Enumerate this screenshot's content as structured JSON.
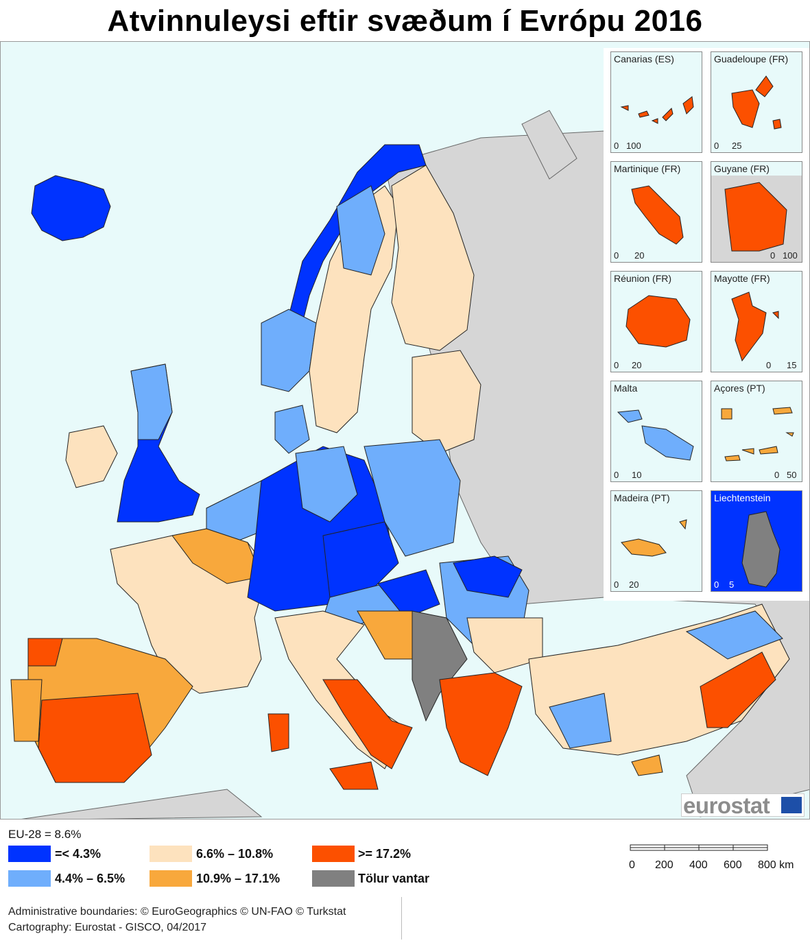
{
  "title": "Atvinnuleysi eftir svæðum í Evrópu 2016",
  "legend": {
    "eu_average": "EU-28 = 8.6%",
    "classes": [
      {
        "label": "=< 4.3%",
        "color": "#0033ff"
      },
      {
        "label": "4.4% – 6.5%",
        "color": "#6faefc"
      },
      {
        "label": "6.6% – 10.8%",
        "color": "#fde2be"
      },
      {
        "label": "10.9% – 17.1%",
        "color": "#f8a83c"
      },
      {
        "label": ">= 17.2%",
        "color": "#fc5000"
      },
      {
        "label": "Tölur vantar",
        "color": "#808080"
      }
    ]
  },
  "insets": [
    {
      "name": "Canarias (ES)",
      "scale": [
        "0",
        "100"
      ],
      "class": ">= 17.2%"
    },
    {
      "name": "Guadeloupe (FR)",
      "scale": [
        "0",
        "25"
      ],
      "class": ">= 17.2%"
    },
    {
      "name": "Martinique (FR)",
      "scale": [
        "0",
        "20"
      ],
      "class": ">= 17.2%"
    },
    {
      "name": "Guyane (FR)",
      "scale": [
        "0",
        "100"
      ],
      "class": ">= 17.2%"
    },
    {
      "name": "Réunion (FR)",
      "scale": [
        "0",
        "20"
      ],
      "class": ">= 17.2%"
    },
    {
      "name": "Mayotte (FR)",
      "scale": [
        "0",
        "15"
      ],
      "class": ">= 17.2%"
    },
    {
      "name": "Malta",
      "scale": [
        "0",
        "10"
      ],
      "class": "4.4% – 6.5%"
    },
    {
      "name": "Açores (PT)",
      "scale": [
        "0",
        "50"
      ],
      "class": "10.9% – 17.1%"
    },
    {
      "name": "Madeira (PT)",
      "scale": [
        "0",
        "20"
      ],
      "class": "10.9% – 17.1%"
    },
    {
      "name": "Liechtenstein",
      "scale": [
        "0",
        "5"
      ],
      "class": "Tölur vantar"
    }
  ],
  "scalebar": {
    "ticks": [
      "0",
      "200",
      "400",
      "600",
      "800 km"
    ]
  },
  "logo": "eurostat",
  "credits": {
    "line1": "Administrative boundaries: © EuroGeographics © UN-FAO © Turkstat",
    "line2": "Cartography: Eurostat - GISCO, 04/2017"
  }
}
